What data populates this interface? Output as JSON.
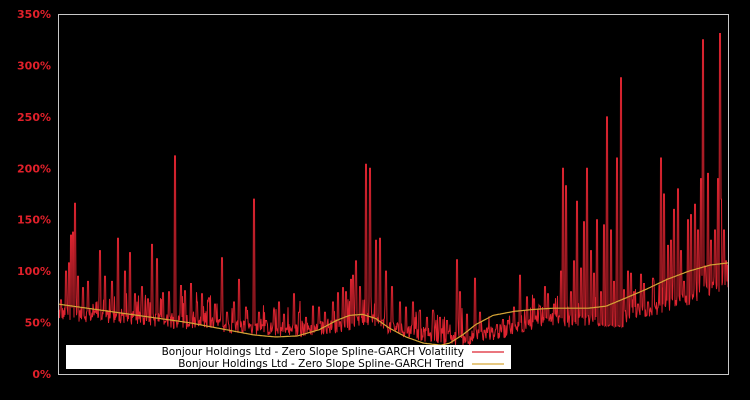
{
  "chart_data": {
    "type": "line",
    "title": "",
    "xlabel": "",
    "ylabel": "",
    "ylim": [
      0,
      350
    ],
    "y_ticks": [
      "0%",
      "50%",
      "100%",
      "150%",
      "200%",
      "250%",
      "300%",
      "350%"
    ],
    "y_tick_values": [
      0,
      50,
      100,
      150,
      200,
      250,
      300,
      350
    ],
    "x_ticks": [],
    "grid": false,
    "background": "#000000",
    "frame_color": "#c8c8c8",
    "legend_position": "lower-left inside",
    "series": [
      {
        "name": "Bonjour Holdings Ltd - Zero Slope Spline-GARCH Volatility",
        "color": "#dd2430",
        "base_curve": [
          [
            0,
            52
          ],
          [
            0.1,
            48
          ],
          [
            0.2,
            43
          ],
          [
            0.3,
            38
          ],
          [
            0.35,
            35
          ],
          [
            0.42,
            40
          ],
          [
            0.46,
            46
          ],
          [
            0.5,
            38
          ],
          [
            0.55,
            31
          ],
          [
            0.6,
            27
          ],
          [
            0.66,
            34
          ],
          [
            0.72,
            44
          ],
          [
            0.8,
            46
          ],
          [
            0.805,
            48
          ],
          [
            0.845,
            46
          ],
          [
            0.85,
            50
          ],
          [
            0.9,
            58
          ],
          [
            0.95,
            68
          ],
          [
            1.0,
            82
          ]
        ],
        "spikes": [
          [
            0.005,
            72
          ],
          [
            0.012,
            100
          ],
          [
            0.016,
            108
          ],
          [
            0.019,
            135
          ],
          [
            0.022,
            138
          ],
          [
            0.026,
            166
          ],
          [
            0.03,
            95
          ],
          [
            0.038,
            84
          ],
          [
            0.045,
            90
          ],
          [
            0.055,
            60
          ],
          [
            0.063,
            120
          ],
          [
            0.07,
            95
          ],
          [
            0.08,
            90
          ],
          [
            0.09,
            132
          ],
          [
            0.1,
            100
          ],
          [
            0.108,
            118
          ],
          [
            0.115,
            78
          ],
          [
            0.125,
            85
          ],
          [
            0.135,
            73
          ],
          [
            0.14,
            126
          ],
          [
            0.148,
            112
          ],
          [
            0.157,
            79
          ],
          [
            0.165,
            80
          ],
          [
            0.175,
            212
          ],
          [
            0.183,
            86
          ],
          [
            0.19,
            81
          ],
          [
            0.198,
            88
          ],
          [
            0.207,
            70
          ],
          [
            0.215,
            78
          ],
          [
            0.225,
            74
          ],
          [
            0.235,
            68
          ],
          [
            0.245,
            113
          ],
          [
            0.252,
            60
          ],
          [
            0.262,
            70
          ],
          [
            0.27,
            92
          ],
          [
            0.28,
            65
          ],
          [
            0.293,
            170
          ],
          [
            0.3,
            60
          ],
          [
            0.31,
            52
          ],
          [
            0.322,
            62
          ],
          [
            0.33,
            70
          ],
          [
            0.338,
            58
          ],
          [
            0.352,
            78
          ],
          [
            0.36,
            60
          ],
          [
            0.37,
            55
          ],
          [
            0.38,
            66
          ],
          [
            0.39,
            65
          ],
          [
            0.398,
            60
          ],
          [
            0.41,
            70
          ],
          [
            0.418,
            79
          ],
          [
            0.425,
            84
          ],
          [
            0.43,
            80
          ],
          [
            0.437,
            92
          ],
          [
            0.44,
            96
          ],
          [
            0.445,
            110
          ],
          [
            0.45,
            85
          ],
          [
            0.46,
            204
          ],
          [
            0.465,
            200
          ],
          [
            0.475,
            130
          ],
          [
            0.48,
            132
          ],
          [
            0.49,
            100
          ],
          [
            0.498,
            85
          ],
          [
            0.51,
            70
          ],
          [
            0.52,
            65
          ],
          [
            0.53,
            70
          ],
          [
            0.54,
            62
          ],
          [
            0.55,
            55
          ],
          [
            0.56,
            62
          ],
          [
            0.57,
            55
          ],
          [
            0.58,
            52
          ],
          [
            0.595,
            111
          ],
          [
            0.6,
            80
          ],
          [
            0.61,
            58
          ],
          [
            0.622,
            93
          ],
          [
            0.63,
            60
          ],
          [
            0.64,
            40
          ],
          [
            0.655,
            48
          ],
          [
            0.664,
            53
          ],
          [
            0.672,
            52
          ],
          [
            0.68,
            65
          ],
          [
            0.69,
            96
          ],
          [
            0.7,
            70
          ],
          [
            0.71,
            73
          ],
          [
            0.72,
            66
          ],
          [
            0.727,
            85
          ],
          [
            0.732,
            78
          ],
          [
            0.7,
            75
          ],
          [
            0.74,
            68
          ],
          [
            0.75,
            100
          ],
          [
            0.753,
            200
          ],
          [
            0.758,
            183
          ],
          [
            0.765,
            80
          ],
          [
            0.77,
            110
          ],
          [
            0.775,
            168
          ],
          [
            0.78,
            103
          ],
          [
            0.785,
            148
          ],
          [
            0.79,
            200
          ],
          [
            0.795,
            120
          ],
          [
            0.8,
            98
          ],
          [
            0.805,
            150
          ],
          [
            0.81,
            80
          ],
          [
            0.815,
            145
          ],
          [
            0.82,
            250
          ],
          [
            0.825,
            140
          ],
          [
            0.83,
            90
          ],
          [
            0.835,
            210
          ],
          [
            0.84,
            288
          ],
          [
            0.845,
            82
          ],
          [
            0.85,
            100
          ],
          [
            0.855,
            98
          ],
          [
            0.86,
            80
          ],
          [
            0.865,
            68
          ],
          [
            0.87,
            97
          ],
          [
            0.875,
            88
          ],
          [
            0.88,
            70
          ],
          [
            0.888,
            93
          ],
          [
            0.9,
            210
          ],
          [
            0.905,
            175
          ],
          [
            0.91,
            125
          ],
          [
            0.915,
            130
          ],
          [
            0.92,
            160
          ],
          [
            0.925,
            180
          ],
          [
            0.93,
            120
          ],
          [
            0.935,
            90
          ],
          [
            0.94,
            150
          ],
          [
            0.945,
            155
          ],
          [
            0.95,
            165
          ],
          [
            0.955,
            140
          ],
          [
            0.96,
            190
          ],
          [
            0.962,
            325
          ],
          [
            0.965,
            105
          ],
          [
            0.97,
            195
          ],
          [
            0.975,
            130
          ],
          [
            0.98,
            140
          ],
          [
            0.985,
            190
          ],
          [
            0.988,
            331
          ],
          [
            0.99,
            170
          ],
          [
            0.994,
            140
          ],
          [
            0.997,
            110
          ]
        ],
        "notes": "Volatility approx 50-80% baseline with many spikes; peaks near 212%, 170%, 204%, 250%, 288%, 216%, 325%, 331%, 275%, 267%"
      },
      {
        "name": "Bonjour Holdings Ltd - Zero Slope Spline-GARCH Trend",
        "color": "#d6a636",
        "points": [
          [
            0,
            68
          ],
          [
            0.05,
            65
          ],
          [
            0.1,
            62
          ],
          [
            0.15,
            59
          ],
          [
            0.2,
            56
          ],
          [
            0.25,
            53
          ],
          [
            0.3,
            50
          ],
          [
            0.35,
            46
          ],
          [
            0.4,
            42
          ],
          [
            0.45,
            38
          ],
          [
            0.5,
            36
          ],
          [
            0.55,
            37
          ],
          [
            0.6,
            43
          ],
          [
            0.64,
            52
          ],
          [
            0.67,
            57
          ],
          [
            0.7,
            58
          ],
          [
            0.73,
            54
          ],
          [
            0.76,
            45
          ],
          [
            0.8,
            36
          ],
          [
            0.84,
            30
          ],
          [
            0.88,
            28
          ],
          [
            0.9,
            30
          ],
          [
            0.93,
            38
          ],
          [
            0.96,
            48
          ],
          [
            1.0,
            57
          ],
          [
            1.05,
            61
          ],
          [
            1.1,
            63
          ],
          [
            1.14,
            64
          ],
          [
            1.18,
            64
          ],
          [
            1.22,
            64
          ],
          [
            1.26,
            66
          ],
          [
            1.3,
            73
          ],
          [
            1.35,
            82
          ],
          [
            1.4,
            92
          ],
          [
            1.45,
            100
          ],
          [
            1.5,
            106
          ],
          [
            1.54,
            108
          ]
        ]
      }
    ]
  },
  "legend": {
    "items": [
      {
        "label": "Bonjour Holdings Ltd - Zero Slope Spline-GARCH Volatility",
        "color": "#dd2430"
      },
      {
        "label": "Bonjour Holdings Ltd - Zero Slope Spline-GARCH Trend",
        "color": "#d6a636"
      }
    ]
  }
}
